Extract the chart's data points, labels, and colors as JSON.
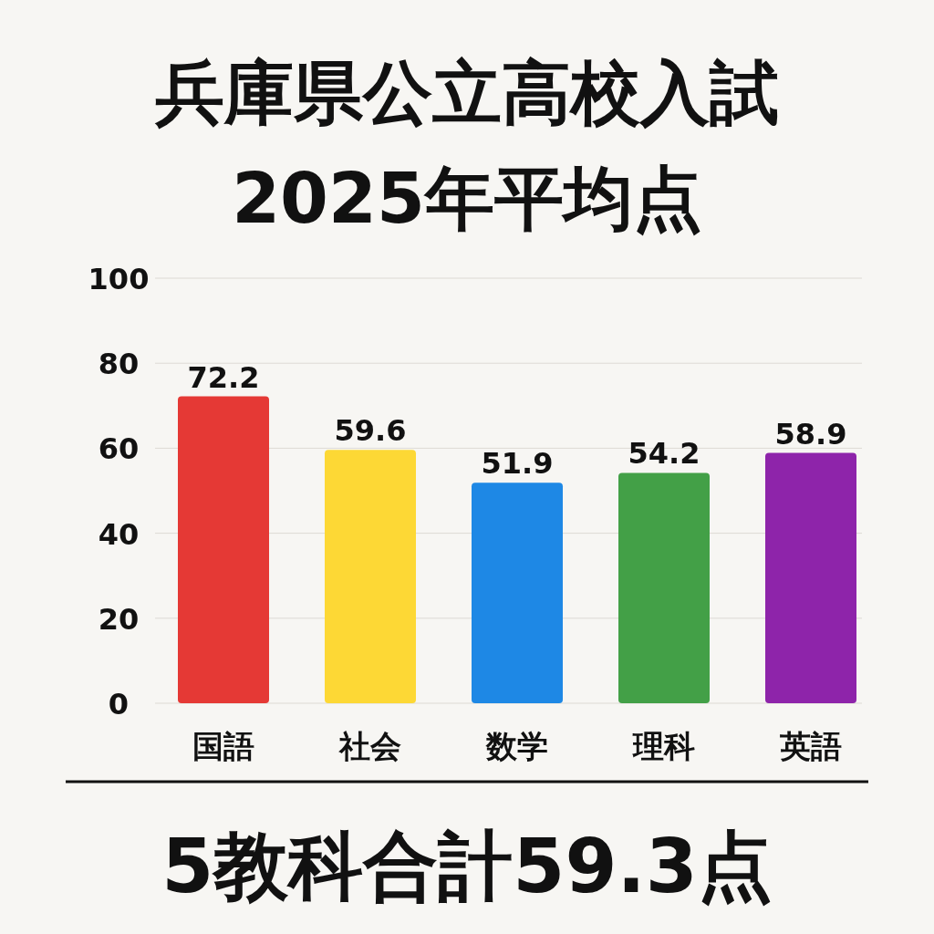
{
  "chart_data": {
    "type": "bar",
    "title": "兵庫県公立高校入試",
    "subtitle": "2025年平均点",
    "categories": [
      "国語",
      "社会",
      "数学",
      "理科",
      "英語"
    ],
    "values": [
      72.2,
      59.6,
      51.9,
      54.2,
      58.9
    ],
    "colors": [
      "#e53935",
      "#fdd835",
      "#1e88e5",
      "#43a047",
      "#8e24aa"
    ],
    "ylim": [
      0,
      100
    ],
    "yticks": [
      0,
      20,
      40,
      60,
      80,
      100
    ],
    "grid": "y",
    "data_labels": true,
    "annotations": [
      "5教科合計59.3点"
    ]
  }
}
